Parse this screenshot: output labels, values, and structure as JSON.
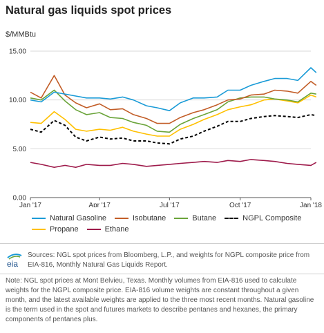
{
  "chart_data": {
    "type": "line",
    "title": "Natural gas liquids spot prices",
    "ylabel": "$/MMBtu",
    "ylim": [
      0,
      15
    ],
    "yticks": [
      "15.00",
      "10.00",
      "5.00",
      "0.00"
    ],
    "ytick_values": [
      15,
      10,
      5,
      0
    ],
    "xticks": [
      "Jan '17",
      "Apr '17",
      "Jul '17",
      "Oct '17",
      "Jan '18"
    ],
    "xtick_values": [
      "2017-01-01",
      "2017-04-01",
      "2017-07-01",
      "2017-10-01",
      "2018-01-01"
    ],
    "grid": "horizontal",
    "legend_position": "bottom",
    "x": [
      "2017-01-01",
      "2017-01-15",
      "2017-02-01",
      "2017-02-15",
      "2017-03-01",
      "2017-03-15",
      "2017-04-01",
      "2017-04-15",
      "2017-05-01",
      "2017-05-15",
      "2017-06-01",
      "2017-06-15",
      "2017-07-01",
      "2017-07-15",
      "2017-08-01",
      "2017-08-15",
      "2017-09-01",
      "2017-09-15",
      "2017-10-01",
      "2017-10-15",
      "2017-11-01",
      "2017-11-15",
      "2017-12-01",
      "2017-12-15",
      "2018-01-01",
      "2018-01-08"
    ],
    "series": [
      {
        "name": "Natural Gasoline",
        "color": "#1a9bd7",
        "dash": false,
        "values": [
          10.0,
          9.8,
          10.8,
          10.6,
          10.4,
          10.2,
          10.2,
          10.1,
          10.3,
          10.0,
          9.4,
          9.2,
          8.9,
          9.7,
          10.2,
          10.2,
          10.3,
          11.0,
          11.0,
          11.5,
          11.9,
          12.2,
          12.2,
          12.0,
          13.3,
          12.8
        ]
      },
      {
        "name": "Isobutane",
        "color": "#c25d27",
        "dash": false,
        "values": [
          10.8,
          10.2,
          12.5,
          10.5,
          9.7,
          9.2,
          9.6,
          9.0,
          9.1,
          8.5,
          8.1,
          7.6,
          7.6,
          8.2,
          8.7,
          9.0,
          9.5,
          10.0,
          10.1,
          10.5,
          10.6,
          11.0,
          10.9,
          10.7,
          11.9,
          11.5
        ]
      },
      {
        "name": "Butane",
        "color": "#6aa43a",
        "dash": false,
        "values": [
          10.2,
          10.0,
          11.0,
          9.9,
          9.0,
          8.5,
          8.7,
          8.2,
          8.1,
          7.7,
          7.4,
          6.8,
          6.7,
          7.5,
          8.1,
          8.5,
          9.0,
          9.8,
          10.2,
          10.3,
          10.3,
          10.1,
          10.0,
          9.8,
          10.7,
          10.6
        ]
      },
      {
        "name": "NGPL Composite",
        "color": "#000000",
        "dash": true,
        "values": [
          7.0,
          6.7,
          7.9,
          7.4,
          6.2,
          5.8,
          6.2,
          6.0,
          6.1,
          5.8,
          5.8,
          5.6,
          5.5,
          6.0,
          6.3,
          6.8,
          7.3,
          7.8,
          7.8,
          8.1,
          8.3,
          8.4,
          8.3,
          8.2,
          8.5,
          8.4
        ]
      },
      {
        "name": "Propane",
        "color": "#ffc000",
        "dash": false,
        "values": [
          7.7,
          7.6,
          8.8,
          8.0,
          7.0,
          6.8,
          7.0,
          6.9,
          7.2,
          6.8,
          6.5,
          6.3,
          6.3,
          7.0,
          7.5,
          8.0,
          8.5,
          9.0,
          9.3,
          9.5,
          10.0,
          10.1,
          9.9,
          9.7,
          10.5,
          10.3
        ]
      },
      {
        "name": "Ethane",
        "color": "#9e1b4b",
        "dash": false,
        "values": [
          3.6,
          3.4,
          3.1,
          3.3,
          3.1,
          3.4,
          3.3,
          3.3,
          3.5,
          3.4,
          3.2,
          3.3,
          3.4,
          3.5,
          3.6,
          3.7,
          3.6,
          3.8,
          3.7,
          3.9,
          3.8,
          3.7,
          3.5,
          3.4,
          3.3,
          3.6
        ]
      }
    ]
  },
  "legend": {
    "row1": [
      "Natural Gasoline",
      "Isobutane",
      "Butane",
      "NGPL Composite"
    ],
    "row2": [
      "Propane",
      "Ethane"
    ]
  },
  "footer": {
    "logo_text": "eia",
    "sources": "Sources: NGL spot prices from Bloomberg, L.P., and weights for NGPL composite price from EIA-816, Monthly Natural Gas Liquids Report.",
    "note": "Note: NGL spot prices at Mont Belvieu, Texas. Monthly volumes from EIA-816 used to calculate weights for the NGPL composite price. EIA-816 volume weights are constant throughout a given month, and the latest available weights are applied to the three most recent months. Natural gasoline is the term used in the spot and futures markets to describe pentanes and hexanes, the primary components of pentanes plus."
  },
  "colors": {
    "natural_gasoline": "#1a9bd7",
    "isobutane": "#c25d27",
    "butane": "#6aa43a",
    "ngpl_composite": "#000000",
    "propane": "#ffc000",
    "ethane": "#9e1b4b"
  }
}
